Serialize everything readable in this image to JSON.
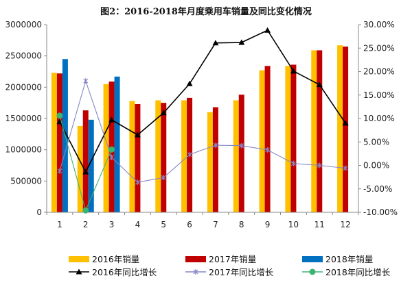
{
  "chart_data": {
    "type": "bar",
    "title": "图2：2016-2018年月度乘用车销量及同比变化情况",
    "categories": [
      "1",
      "2",
      "3",
      "4",
      "5",
      "6",
      "7",
      "8",
      "9",
      "10",
      "11",
      "12"
    ],
    "y_left": {
      "ylim": [
        0,
        3000000
      ],
      "ticks": [
        "0",
        "500000",
        "1000000",
        "1500000",
        "2000000",
        "2500000",
        "3000000"
      ]
    },
    "y_right": {
      "ylim": [
        -10,
        30
      ],
      "ticks": [
        "-10.00%",
        "-5.00%",
        "0.00%",
        "5.00%",
        "10.00%",
        "15.00%",
        "20.00%",
        "25.00%",
        "30.00%"
      ]
    },
    "grid": false,
    "legend_position": "bottom",
    "bar_series": [
      {
        "name": "2016年销量",
        "color": "#FFC000",
        "values": [
          2230000,
          1380000,
          2050000,
          1780000,
          1790000,
          1790000,
          1600000,
          1790000,
          2270000,
          2340000,
          2590000,
          2670000
        ]
      },
      {
        "name": "2017年销量",
        "color": "#C00000",
        "values": [
          2220000,
          1630000,
          2090000,
          1730000,
          1750000,
          1830000,
          1680000,
          1880000,
          2340000,
          2360000,
          2590000,
          2650000
        ]
      },
      {
        "name": "2018年销量",
        "color": "#0070C0",
        "values": [
          2450000,
          1480000,
          2170000
        ]
      }
    ],
    "line_series": [
      {
        "name": "2016年同比增长",
        "color": "#000000",
        "marker": "triangle",
        "values": [
          9.3,
          -1.4,
          9.7,
          6.5,
          11.2,
          17.4,
          26.1,
          26.2,
          28.8,
          20.1,
          17.2,
          9.0
        ]
      },
      {
        "name": "2017年同比增长",
        "color": "#8585C8",
        "marker": "star",
        "values": [
          -1.2,
          18.0,
          1.7,
          -3.6,
          -2.6,
          2.3,
          4.3,
          4.2,
          3.3,
          0.4,
          0.0,
          -0.6
        ]
      },
      {
        "name": "2018年同比增长",
        "color": "#3CB371",
        "marker": "circle",
        "values": [
          10.6,
          -9.6,
          3.4
        ]
      }
    ]
  }
}
